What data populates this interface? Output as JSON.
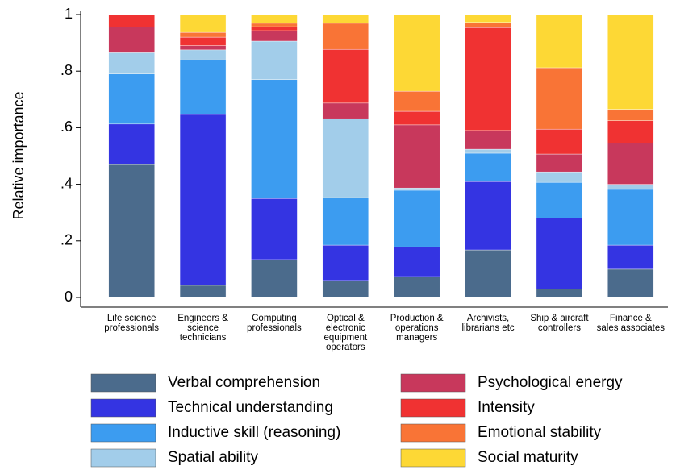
{
  "chart_data": {
    "type": "stacked_bar",
    "ylabel": "Relative importance",
    "ylim": [
      0,
      1
    ],
    "yticks": [
      0,
      {
        "value": 0.2,
        "label": ".2"
      },
      {
        "value": 0.4,
        "label": ".4"
      },
      {
        "value": 0.6,
        "label": ".6"
      },
      {
        "value": 0.8,
        "label": ".8"
      },
      1
    ],
    "grid": false,
    "categories": [
      [
        "Life science",
        "professionals"
      ],
      [
        "Engineers &",
        "science",
        "technicians"
      ],
      [
        "Computing",
        "professionals"
      ],
      [
        "Optical &",
        "electronic",
        "equipment",
        "operators"
      ],
      [
        "Production &",
        "operations",
        "managers"
      ],
      [
        "Archivists,",
        "librarians etc"
      ],
      [
        "Ship & aircraft",
        "controllers"
      ],
      [
        "Finance &",
        "sales associates"
      ]
    ],
    "series": [
      {
        "name": "Verbal comprehension",
        "color": "#4b6b8c",
        "values": [
          0.47,
          0.043,
          0.134,
          0.06,
          0.074,
          0.168,
          0.03,
          0.1
        ]
      },
      {
        "name": "Technical understanding",
        "color": "#3434e2",
        "values": [
          0.143,
          0.604,
          0.216,
          0.125,
          0.105,
          0.242,
          0.25,
          0.085
        ]
      },
      {
        "name": "Inductive skill (reasoning)",
        "color": "#3c9cf0",
        "values": [
          0.177,
          0.193,
          0.42,
          0.168,
          0.2,
          0.1,
          0.127,
          0.197
        ]
      },
      {
        "name": "Spatial ability",
        "color": "#a2cdea",
        "values": [
          0.075,
          0.035,
          0.136,
          0.279,
          0.008,
          0.014,
          0.037,
          0.018
        ]
      },
      {
        "name": "Psychological energy",
        "color": "#c8385c",
        "values": [
          0.09,
          0.015,
          0.037,
          0.055,
          0.223,
          0.066,
          0.063,
          0.145
        ]
      },
      {
        "name": "Intensity",
        "color": "#f03232",
        "values": [
          0.045,
          0.03,
          0.014,
          0.19,
          0.048,
          0.364,
          0.088,
          0.08
        ]
      },
      {
        "name": "Emotional stability",
        "color": "#f97436",
        "values": [
          0,
          0.017,
          0.012,
          0.092,
          0.071,
          0.018,
          0.217,
          0.04
        ]
      },
      {
        "name": "Social maturity",
        "color": "#fdd835",
        "values": [
          0,
          0.063,
          0.031,
          0.031,
          0.271,
          0.028,
          0.188,
          0.335
        ]
      }
    ]
  }
}
